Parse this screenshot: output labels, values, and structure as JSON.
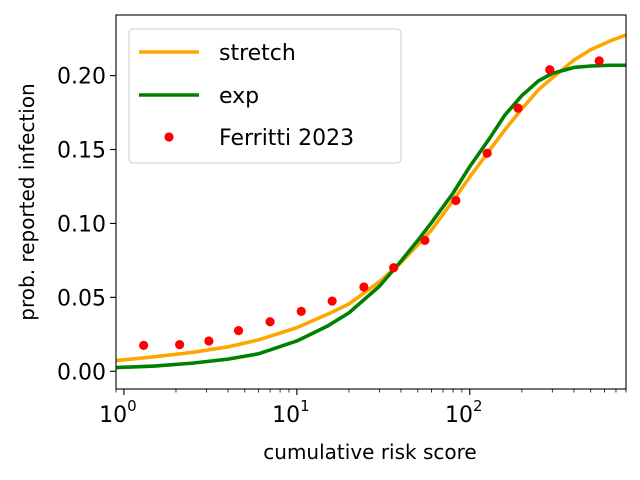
{
  "chart_data": {
    "type": "line",
    "title": "",
    "xlabel": "cumulative risk score",
    "ylabel": "prob. reported infection",
    "xscale": "log",
    "xlim": [
      0.9,
      800
    ],
    "ylim": [
      -0.012,
      0.241
    ],
    "legend_position": "top-left",
    "x_ticks": [
      {
        "value": 1,
        "base": "10",
        "exp": "0"
      },
      {
        "value": 10,
        "base": "10",
        "exp": "1"
      },
      {
        "value": 100,
        "base": "10",
        "exp": "2"
      }
    ],
    "y_ticks": [
      {
        "value": 0.0,
        "label": "0.00"
      },
      {
        "value": 0.05,
        "label": "0.05"
      },
      {
        "value": 0.1,
        "label": "0.10"
      },
      {
        "value": 0.15,
        "label": "0.15"
      },
      {
        "value": 0.2,
        "label": "0.20"
      }
    ],
    "series": [
      {
        "name": "stretch",
        "kind": "line",
        "color": "#ffa500",
        "x": [
          0.9,
          1.5,
          2.5,
          4,
          6,
          10,
          15,
          20,
          30,
          40,
          50,
          60,
          80,
          100,
          130,
          160,
          200,
          250,
          300,
          400,
          500,
          650,
          800
        ],
        "y": [
          0.0072,
          0.0098,
          0.0128,
          0.0165,
          0.0212,
          0.0295,
          0.0385,
          0.0455,
          0.0605,
          0.0735,
          0.0855,
          0.0955,
          0.1155,
          0.1315,
          0.1495,
          0.1635,
          0.1775,
          0.1905,
          0.1985,
          0.2105,
          0.2175,
          0.2235,
          0.2275
        ]
      },
      {
        "name": "exp",
        "kind": "line",
        "color": "#008000",
        "x": [
          0.9,
          1.5,
          2.5,
          4,
          6,
          10,
          15,
          20,
          30,
          40,
          50,
          60,
          80,
          100,
          130,
          160,
          200,
          250,
          300,
          400,
          500,
          650,
          800
        ],
        "y": [
          0.0025,
          0.0035,
          0.0055,
          0.0082,
          0.0118,
          0.0205,
          0.0305,
          0.0395,
          0.0575,
          0.0745,
          0.0885,
          0.1005,
          0.1205,
          0.1385,
          0.1575,
          0.1735,
          0.1865,
          0.1965,
          0.2015,
          0.2055,
          0.2065,
          0.207,
          0.207
        ]
      },
      {
        "name": "Ferritti 2023",
        "kind": "scatter",
        "color": "#ff0000",
        "x": [
          1.3,
          2.1,
          3.1,
          4.6,
          7.0,
          10.6,
          16.0,
          24.4,
          36.3,
          55.0,
          83.0,
          126,
          190,
          290,
          560
        ],
        "y": [
          0.0175,
          0.018,
          0.0205,
          0.0275,
          0.0335,
          0.0405,
          0.0475,
          0.057,
          0.07,
          0.0885,
          0.1155,
          0.1475,
          0.178,
          0.204,
          0.21
        ]
      }
    ]
  }
}
